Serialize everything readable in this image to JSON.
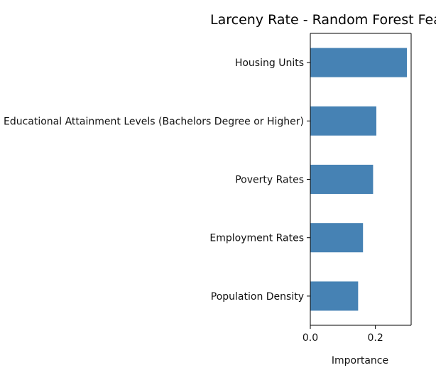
{
  "chart_data": {
    "type": "bar",
    "orientation": "horizontal",
    "title": "Larceny Rate - Random Forest Featu",
    "xlabel": "Importance",
    "ylabel": "",
    "categories": [
      "Housing Units",
      "Educational Attainment Levels (Bachelors Degree or Higher)",
      "Poverty Rates",
      "Employment Rates",
      "Population Density"
    ],
    "values": [
      0.297,
      0.203,
      0.193,
      0.162,
      0.147
    ],
    "xlim": [
      0,
      0.31
    ],
    "xticks": [
      0.0,
      0.2
    ],
    "xtick_labels": [
      "0.0",
      "0.2"
    ],
    "grid": false,
    "bar_color": "#4682b4"
  }
}
